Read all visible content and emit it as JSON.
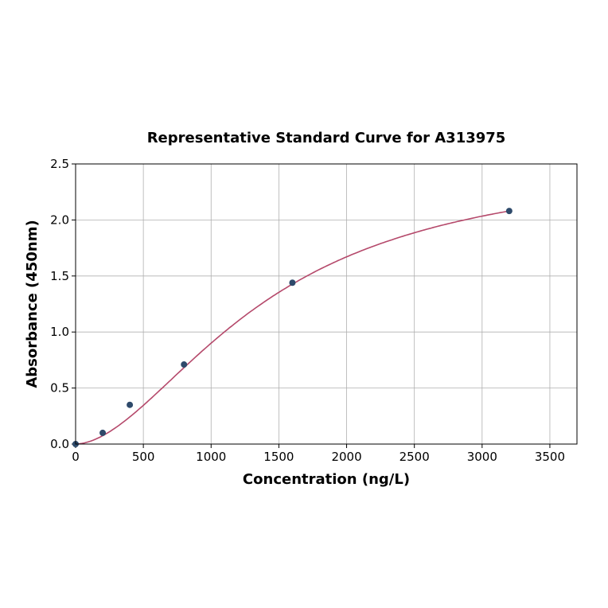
{
  "chart_data": {
    "type": "scatter",
    "title": "Representative Standard Curve for A313975",
    "xlabel": "Concentration (ng/L)",
    "ylabel": "Absorbance (450nm)",
    "xlim": [
      0,
      3700
    ],
    "ylim": [
      0,
      2.5
    ],
    "xticks": [
      0,
      500,
      1000,
      1500,
      2000,
      2500,
      3000,
      3500
    ],
    "yticks": [
      0.0,
      0.5,
      1.0,
      1.5,
      2.0,
      2.5
    ],
    "xtick_labels": [
      "0",
      "500",
      "1000",
      "1500",
      "2000",
      "2500",
      "3000",
      "3500"
    ],
    "ytick_labels": [
      "0.0",
      "0.5",
      "1.0",
      "1.5",
      "2.0",
      "2.5"
    ],
    "grid": true,
    "points": {
      "x": [
        0,
        200,
        400,
        800,
        1600,
        3200
      ],
      "y": [
        0.0,
        0.1,
        0.35,
        0.71,
        1.44,
        2.08
      ]
    },
    "fit_curve": {
      "type": "4PL",
      "x_range": [
        0,
        3200
      ]
    },
    "colors": {
      "points": "#2e4a6b",
      "curve": "#b5496b"
    }
  }
}
